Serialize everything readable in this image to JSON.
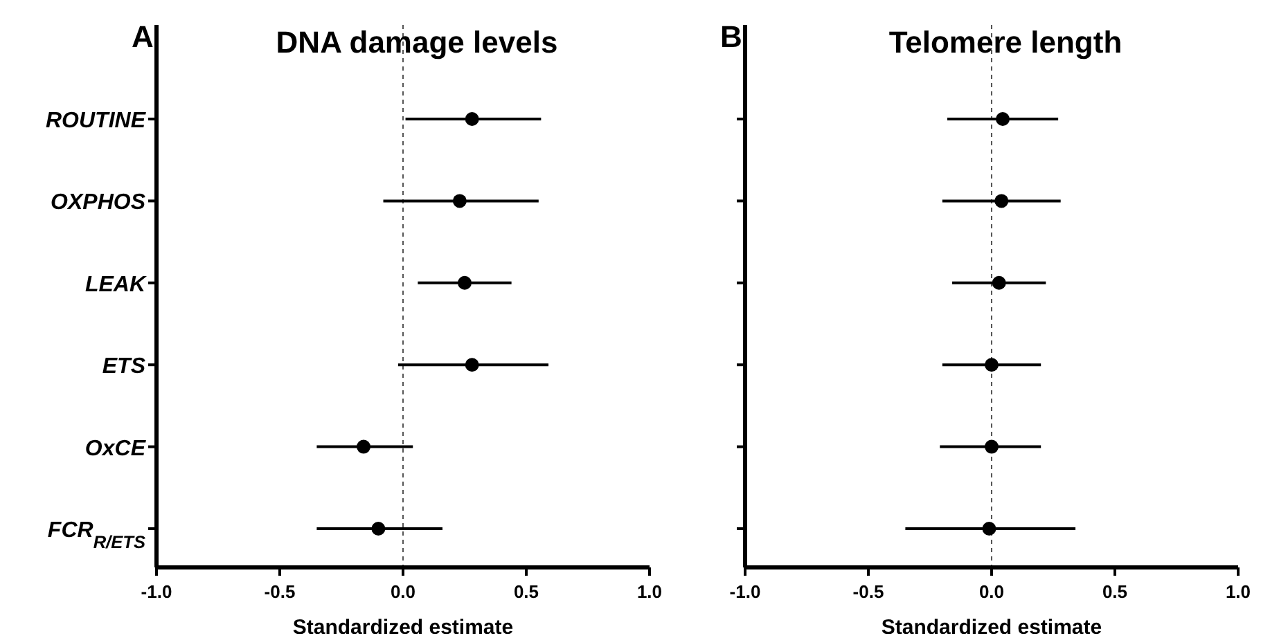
{
  "chart_data": [
    {
      "type": "scatter",
      "orientation": "horizontal",
      "title": "DNA damage levels",
      "annotations": [
        "A"
      ],
      "xlabel": "Standardized estimate",
      "categories": [
        "ROUTINE",
        "OXPHOS",
        "LEAK",
        "ETS",
        "OxCE",
        "FCR$_{R/ETS}$"
      ],
      "series": [
        {
          "color": "#000000",
          "values": [
            0.28,
            0.23,
            0.25,
            0.28,
            -0.16,
            -0.1
          ],
          "errors": [
            [
              0.01,
              0.56
            ],
            [
              -0.08,
              0.55
            ],
            [
              0.06,
              0.44
            ],
            [
              -0.02,
              0.59
            ],
            [
              -0.35,
              0.04
            ],
            [
              -0.35,
              0.16
            ]
          ]
        }
      ],
      "xlim": [
        -1,
        1
      ],
      "xticks": [
        {
          "value": -1,
          "label": "-1.0"
        },
        {
          "value": -0.5,
          "label": "-0.5"
        },
        {
          "value": 0,
          "label": "0.0"
        },
        {
          "value": 0.5,
          "label": "0.5"
        },
        {
          "value": 1,
          "label": "1.0"
        }
      ],
      "marker": "circle",
      "grid": false,
      "ref_lines": [
        {
          "axis": "x",
          "value": 0,
          "line_style": "dashed",
          "color": "#555555"
        }
      ]
    },
    {
      "type": "scatter",
      "orientation": "horizontal",
      "title": "Telomere length",
      "annotations": [
        "B"
      ],
      "xlabel": "Standardized estimate",
      "categories": [
        null,
        null,
        null,
        null,
        null,
        null
      ],
      "series": [
        {
          "color": "#000000",
          "values": [
            0.045,
            0.04,
            0.03,
            0.0,
            0.0,
            -0.01
          ],
          "errors": [
            [
              -0.18,
              0.27
            ],
            [
              -0.2,
              0.28
            ],
            [
              -0.16,
              0.22
            ],
            [
              -0.2,
              0.2
            ],
            [
              -0.21,
              0.2
            ],
            [
              -0.35,
              0.34
            ]
          ]
        }
      ],
      "xlim": [
        -1,
        1
      ],
      "xticks": [
        {
          "value": -1,
          "label": "-1.0"
        },
        {
          "value": -0.5,
          "label": "-0.5"
        },
        {
          "value": 0,
          "label": "0.0"
        },
        {
          "value": 0.5,
          "label": "0.5"
        },
        {
          "value": 1,
          "label": "1.0"
        }
      ],
      "marker": "circle",
      "grid": false,
      "ref_lines": [
        {
          "axis": "x",
          "value": 0,
          "line_style": "dashed",
          "color": "#555555"
        }
      ]
    }
  ]
}
